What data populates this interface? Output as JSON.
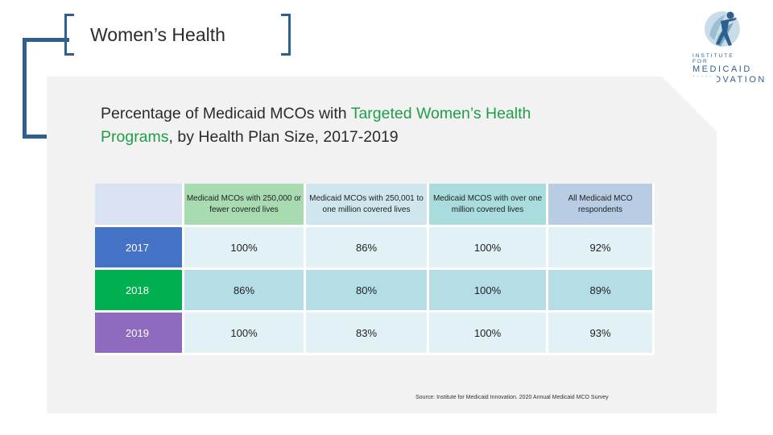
{
  "slide": {
    "section_title": "Women’s Health",
    "chart_title_part1": "Percentage of Medicaid MCOs with ",
    "chart_title_highlight1": "Targeted Women’s Health",
    "chart_title_highlight2": "Programs",
    "chart_title_part2": ", by Health Plan Size, 2017-2019",
    "source": "Source: Institute for Medicaid Innovation. 2020 Annual Medicaid MCO Survey"
  },
  "logo": {
    "line1": "INSTITUTE FOR",
    "line2": "MEDICAID",
    "line3": "INNOVATION"
  },
  "table": {
    "headers": [
      "Medicaid MCOs with 250,000 or fewer covered lives",
      "Medicaid MCOs with 250,001 to one million covered lives",
      "Medicaid MCOS with over one million covered lives",
      "All Medicaid MCO respondents"
    ],
    "rows": [
      {
        "year": "2017",
        "values": [
          "100%",
          "86%",
          "100%",
          "92%"
        ]
      },
      {
        "year": "2018",
        "values": [
          "86%",
          "80%",
          "100%",
          "89%"
        ]
      },
      {
        "year": "2019",
        "values": [
          "100%",
          "83%",
          "100%",
          "93%"
        ]
      }
    ]
  },
  "colors": {
    "brand_blue": "#2f5f8f",
    "highlight_green": "#1f9e47",
    "year_2017": "#4472c4",
    "year_2018": "#00b050",
    "year_2019": "#8e6bbf"
  }
}
